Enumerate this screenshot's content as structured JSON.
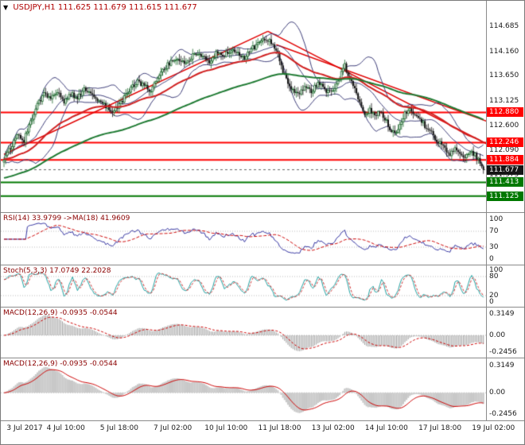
{
  "header": {
    "collapse_arrow": "▼",
    "symbol_period": "USDJPY,H1",
    "ohlc": "111.625 111.679 111.615 111.677"
  },
  "colors": {
    "bull_candle": "#1f6a2f",
    "bear_candle": "#101010",
    "bollinger": "#3c3c78",
    "ma_fast": "#d02020",
    "ma_slow": "#1e7a32",
    "trendline": "#e00000",
    "level_red": "#ff0000",
    "level_green": "#007800",
    "current_price_box": "#151515",
    "current_price_line": "#666666",
    "rsi_line": "#3333a0",
    "rsi_signal": "#cc0000",
    "stoch_main": "#20a0a0",
    "stoch_signal": "#cc3333",
    "macd_hist": "#9a9a9a",
    "macd_hist_fill": "#c8c8c8",
    "macd_signal": "#cc0000",
    "grid_dotted": "#b8b8b8"
  },
  "chart_data": {
    "type": "candlestick",
    "symbol": "USDJPY",
    "timeframe": "H1",
    "title": "USDJPY,H1",
    "last_bar": {
      "open": 111.625,
      "high": 111.679,
      "low": 111.615,
      "close": 111.677
    },
    "num_bars": 288,
    "close_keypoints": [
      [
        0,
        111.92
      ],
      [
        4,
        112.12
      ],
      [
        8,
        112.42
      ],
      [
        12,
        112.28
      ],
      [
        16,
        112.7
      ],
      [
        20,
        113.05
      ],
      [
        24,
        113.28
      ],
      [
        28,
        113.15
      ],
      [
        32,
        113.34
      ],
      [
        36,
        113.1
      ],
      [
        40,
        113.27
      ],
      [
        44,
        113.16
      ],
      [
        48,
        113.4
      ],
      [
        52,
        113.3
      ],
      [
        56,
        113.16
      ],
      [
        60,
        113.04
      ],
      [
        64,
        112.88
      ],
      [
        68,
        112.98
      ],
      [
        72,
        113.2
      ],
      [
        76,
        113.36
      ],
      [
        80,
        113.54
      ],
      [
        84,
        113.42
      ],
      [
        88,
        113.34
      ],
      [
        92,
        113.58
      ],
      [
        96,
        113.8
      ],
      [
        100,
        113.94
      ],
      [
        104,
        114.02
      ],
      [
        108,
        113.88
      ],
      [
        112,
        114.04
      ],
      [
        116,
        114.14
      ],
      [
        120,
        114.02
      ],
      [
        124,
        113.94
      ],
      [
        128,
        114.16
      ],
      [
        132,
        114.08
      ],
      [
        136,
        114.2
      ],
      [
        140,
        114.14
      ],
      [
        144,
        114.04
      ],
      [
        148,
        114.2
      ],
      [
        152,
        114.3
      ],
      [
        156,
        114.42
      ],
      [
        160,
        114.36
      ],
      [
        163,
        114.2
      ],
      [
        166,
        113.86
      ],
      [
        169,
        113.55
      ],
      [
        172,
        113.34
      ],
      [
        176,
        113.24
      ],
      [
        180,
        113.44
      ],
      [
        184,
        113.32
      ],
      [
        188,
        113.5
      ],
      [
        192,
        113.36
      ],
      [
        196,
        113.3
      ],
      [
        200,
        113.54
      ],
      [
        204,
        113.86
      ],
      [
        207,
        113.6
      ],
      [
        210,
        113.4
      ],
      [
        213,
        113.08
      ],
      [
        216,
        112.84
      ],
      [
        219,
        112.94
      ],
      [
        222,
        112.8
      ],
      [
        225,
        112.94
      ],
      [
        228,
        112.76
      ],
      [
        231,
        112.55
      ],
      [
        234,
        112.42
      ],
      [
        237,
        112.64
      ],
      [
        240,
        112.86
      ],
      [
        243,
        112.94
      ],
      [
        246,
        112.82
      ],
      [
        249,
        112.72
      ],
      [
        252,
        112.6
      ],
      [
        255,
        112.5
      ],
      [
        258,
        112.34
      ],
      [
        261,
        112.22
      ],
      [
        264,
        112.1
      ],
      [
        267,
        112.02
      ],
      [
        270,
        112.12
      ],
      [
        273,
        112.04
      ],
      [
        276,
        111.94
      ],
      [
        279,
        112.06
      ],
      [
        282,
        111.98
      ],
      [
        284,
        111.9
      ],
      [
        286,
        111.76
      ],
      [
        287,
        111.677
      ]
    ],
    "y_axis_ticks": [
      {
        "value": 114.685,
        "label": "114.685"
      },
      {
        "value": 114.16,
        "label": "114.160"
      },
      {
        "value": 113.65,
        "label": "113.650"
      },
      {
        "value": 113.125,
        "label": "113.125"
      },
      {
        "value": 112.6,
        "label": "112.600"
      },
      {
        "value": 112.09,
        "label": "112.090"
      },
      {
        "value": 111.575,
        "label": "111.575"
      },
      {
        "value": 111.055,
        "label": "111.055"
      }
    ],
    "price_lines": [
      {
        "price": 112.88,
        "label": "112.880",
        "color": "#ff0000",
        "width": 2
      },
      {
        "price": 112.246,
        "label": "112.246",
        "color": "#ff0000",
        "width": 2
      },
      {
        "price": 111.884,
        "label": "111.884",
        "color": "#ff0000",
        "width": 2
      },
      {
        "price": 111.413,
        "label": "111.413",
        "color": "#007800",
        "width": 2
      },
      {
        "price": 111.125,
        "label": "111.125",
        "color": "#007800",
        "width": 2
      }
    ],
    "current_price": {
      "price": 111.677,
      "label": "111.677"
    },
    "trendlines": [
      {
        "from": [
          0,
          112.0
        ],
        "to": [
          158,
          114.58
        ]
      },
      {
        "from": [
          158,
          114.58
        ],
        "to": [
          290,
          112.2
        ]
      },
      {
        "from": [
          163,
          114.3
        ],
        "to": [
          290,
          112.68
        ]
      }
    ],
    "overlays": {
      "bollinger": {
        "period": 20,
        "deviation": 2
      },
      "ma_fast_period": 50,
      "ma_slow_period": 130
    },
    "panels": [
      {
        "id": "rsi",
        "label": "RSI(14) 33.9799 ->MA(18) 41.9609",
        "values": {
          "rsi": 33.9799,
          "rsi_ma": 41.9609
        },
        "levels": [
          70,
          30
        ],
        "ticks": [
          {
            "value": 100,
            "label": "100"
          },
          {
            "value": 70,
            "label": "70"
          },
          {
            "value": 30,
            "label": "30"
          },
          {
            "value": 0,
            "label": "0"
          }
        ]
      },
      {
        "id": "stoch",
        "label": "Stoch(5,3,3) 17.0749 22.2028",
        "values": {
          "k": 17.0749,
          "d": 22.2028
        },
        "levels": [
          80,
          20
        ],
        "ticks": [
          {
            "value": 100,
            "label": "100"
          },
          {
            "value": 80,
            "label": "80"
          },
          {
            "value": 20,
            "label": "20"
          },
          {
            "value": 0,
            "label": "0"
          }
        ]
      },
      {
        "id": "macd1",
        "label": "MACD(12,26,9) -0.0935 -0.0544",
        "values": {
          "macd": -0.0935,
          "signal": -0.0544
        },
        "levels": [
          0
        ],
        "ticks": [
          {
            "value": 0.3149,
            "label": "0.3149"
          },
          {
            "value": 0,
            "label": "0.00"
          },
          {
            "value": -0.2456,
            "label": "-0.2456"
          }
        ]
      },
      {
        "id": "macd2",
        "label": "MACD(12,26,9) -0.0935 -0.0544",
        "values": {
          "macd": -0.0935,
          "signal": -0.0544
        },
        "levels": [
          0
        ],
        "ticks": [
          {
            "value": 0.3149,
            "label": "0.3149"
          },
          {
            "value": 0,
            "label": "0.00"
          },
          {
            "value": -0.2456,
            "label": "-0.2456"
          }
        ]
      }
    ],
    "x_labels": [
      {
        "bar": 5,
        "text": "3 Jul 2017"
      },
      {
        "bar": 37,
        "text": "4 Jul 10:00"
      },
      {
        "bar": 69,
        "text": "5 Jul 18:00"
      },
      {
        "bar": 101,
        "text": "7 Jul 02:00"
      },
      {
        "bar": 133,
        "text": "10 Jul 10:00"
      },
      {
        "bar": 165,
        "text": "11 Jul 18:00"
      },
      {
        "bar": 197,
        "text": "13 Jul 02:00"
      },
      {
        "bar": 229,
        "text": "14 Jul 10:00"
      },
      {
        "bar": 261,
        "text": "17 Jul 18:00"
      },
      {
        "bar": 293,
        "text": "19 Jul 02:00"
      }
    ]
  }
}
